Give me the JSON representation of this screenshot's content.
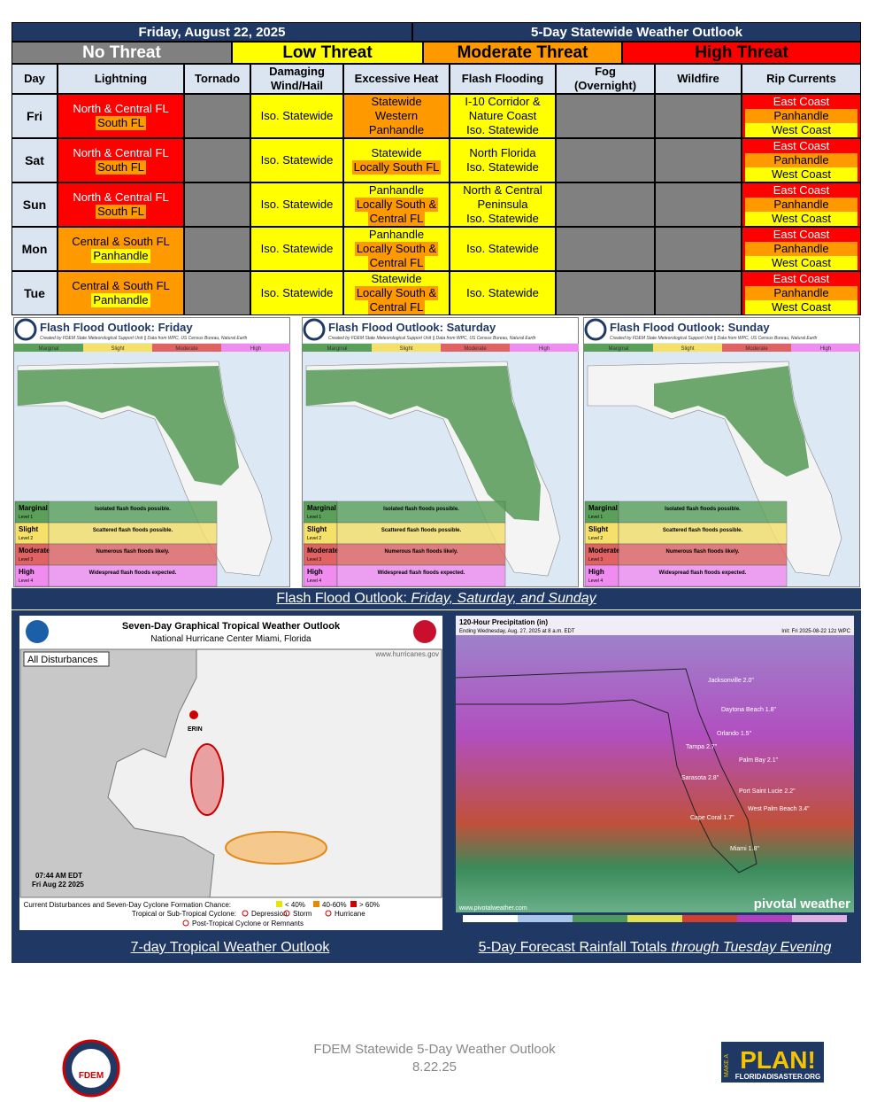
{
  "header": {
    "date": "Friday, August 22, 2025",
    "title": "5-Day Statewide Weather Outlook"
  },
  "threats": [
    {
      "label": "No Threat",
      "color": "#808080"
    },
    {
      "label": "Low Threat",
      "color": "#ffff00"
    },
    {
      "label": "Moderate Threat",
      "color": "#ff9900"
    },
    {
      "label": "High Threat",
      "color": "#ff0000"
    }
  ],
  "table": {
    "columns": [
      "Day",
      "Lightning",
      "Tornado",
      "Damaging Wind/Hail",
      "Excessive Heat",
      "Flash Flooding",
      "Fog (Overnight)",
      "Wildfire",
      "Rip Currents"
    ],
    "rows": [
      {
        "day": "Fri",
        "cells": [
          {
            "bg": "#ff0000",
            "lines": [
              {
                "text": "North & Central FL",
                "bg": "#ff0000"
              },
              {
                "text": "South FL",
                "bg": "#ff9900"
              }
            ]
          },
          {
            "bg": "#808080",
            "lines": []
          },
          {
            "bg": "#ffff00",
            "lines": [
              {
                "text": "Iso. Statewide",
                "bg": "#ffff00"
              }
            ]
          },
          {
            "bg": "#ff9900",
            "lines": [
              {
                "text": "Statewide",
                "bg": "#ff9900"
              },
              {
                "text": "Western",
                "bg": "#ff9900"
              },
              {
                "text": "Panhandle",
                "bg": "#ff9900"
              }
            ]
          },
          {
            "bg": "#ffff00",
            "lines": [
              {
                "text": "I-10 Corridor &",
                "bg": "#ffff00"
              },
              {
                "text": "Nature Coast",
                "bg": "#ffff00"
              },
              {
                "text": "Iso. Statewide",
                "bg": "#ffff00"
              }
            ]
          },
          {
            "bg": "#808080",
            "lines": []
          },
          {
            "bg": "#808080",
            "lines": []
          },
          {
            "bg": "#ff0000",
            "lines": [
              {
                "text": "East Coast",
                "bg": "#ff0000"
              },
              {
                "text": "Panhandle",
                "bg": "#ff9900"
              },
              {
                "text": "West Coast",
                "bg": "#ffff00"
              }
            ]
          }
        ]
      },
      {
        "day": "Sat",
        "cells": [
          {
            "bg": "#ff0000",
            "lines": [
              {
                "text": "North & Central FL",
                "bg": "#ff0000"
              },
              {
                "text": "South FL",
                "bg": "#ff9900"
              }
            ]
          },
          {
            "bg": "#808080",
            "lines": []
          },
          {
            "bg": "#ffff00",
            "lines": [
              {
                "text": "Iso. Statewide",
                "bg": "#ffff00"
              }
            ]
          },
          {
            "bg": "#ffff00",
            "lines": [
              {
                "text": "Statewide",
                "bg": "#ffff00"
              },
              {
                "text": "Locally South FL",
                "bg": "#ff9900"
              }
            ]
          },
          {
            "bg": "#ffff00",
            "lines": [
              {
                "text": "North Florida",
                "bg": "#ffff00"
              },
              {
                "text": "Iso. Statewide",
                "bg": "#ffff00"
              }
            ]
          },
          {
            "bg": "#808080",
            "lines": []
          },
          {
            "bg": "#808080",
            "lines": []
          },
          {
            "bg": "#ff0000",
            "lines": [
              {
                "text": "East Coast",
                "bg": "#ff0000"
              },
              {
                "text": "Panhandle",
                "bg": "#ff9900"
              },
              {
                "text": "West Coast",
                "bg": "#ffff00"
              }
            ]
          }
        ]
      },
      {
        "day": "Sun",
        "cells": [
          {
            "bg": "#ff0000",
            "lines": [
              {
                "text": "North & Central FL",
                "bg": "#ff0000"
              },
              {
                "text": "South FL",
                "bg": "#ff9900"
              }
            ]
          },
          {
            "bg": "#808080",
            "lines": []
          },
          {
            "bg": "#ffff00",
            "lines": [
              {
                "text": "Iso. Statewide",
                "bg": "#ffff00"
              }
            ]
          },
          {
            "bg": "#ffff00",
            "lines": [
              {
                "text": "Panhandle",
                "bg": "#ffff00"
              },
              {
                "text": "Locally South &",
                "bg": "#ff9900"
              },
              {
                "text": "Central FL",
                "bg": "#ff9900"
              }
            ]
          },
          {
            "bg": "#ffff00",
            "lines": [
              {
                "text": "North & Central",
                "bg": "#ffff00"
              },
              {
                "text": "Peninsula",
                "bg": "#ffff00"
              },
              {
                "text": "Iso. Statewide",
                "bg": "#ffff00"
              }
            ]
          },
          {
            "bg": "#808080",
            "lines": []
          },
          {
            "bg": "#808080",
            "lines": []
          },
          {
            "bg": "#ff0000",
            "lines": [
              {
                "text": "East Coast",
                "bg": "#ff0000"
              },
              {
                "text": "Panhandle",
                "bg": "#ff9900"
              },
              {
                "text": "West Coast",
                "bg": "#ffff00"
              }
            ]
          }
        ]
      },
      {
        "day": "Mon",
        "cells": [
          {
            "bg": "#ff9900",
            "lines": [
              {
                "text": "Central & South FL",
                "bg": "#ff9900"
              },
              {
                "text": "Panhandle",
                "bg": "#ffff00"
              }
            ]
          },
          {
            "bg": "#808080",
            "lines": []
          },
          {
            "bg": "#ffff00",
            "lines": [
              {
                "text": "Iso. Statewide",
                "bg": "#ffff00"
              }
            ]
          },
          {
            "bg": "#ffff00",
            "lines": [
              {
                "text": "Panhandle",
                "bg": "#ffff00"
              },
              {
                "text": "Locally South &",
                "bg": "#ff9900"
              },
              {
                "text": "Central FL",
                "bg": "#ff9900"
              }
            ]
          },
          {
            "bg": "#ffff00",
            "lines": [
              {
                "text": "Iso. Statewide",
                "bg": "#ffff00"
              }
            ]
          },
          {
            "bg": "#808080",
            "lines": []
          },
          {
            "bg": "#808080",
            "lines": []
          },
          {
            "bg": "#ff0000",
            "lines": [
              {
                "text": "East Coast",
                "bg": "#ff0000"
              },
              {
                "text": "Panhandle",
                "bg": "#ff9900"
              },
              {
                "text": "West Coast",
                "bg": "#ffff00"
              }
            ]
          }
        ]
      },
      {
        "day": "Tue",
        "cells": [
          {
            "bg": "#ff9900",
            "lines": [
              {
                "text": "Central & South FL",
                "bg": "#ff9900"
              },
              {
                "text": "Panhandle",
                "bg": "#ffff00"
              }
            ]
          },
          {
            "bg": "#808080",
            "lines": []
          },
          {
            "bg": "#ffff00",
            "lines": [
              {
                "text": "Iso. Statewide",
                "bg": "#ffff00"
              }
            ]
          },
          {
            "bg": "#ffff00",
            "lines": [
              {
                "text": "Statewide",
                "bg": "#ffff00"
              },
              {
                "text": "Locally South &",
                "bg": "#ff9900"
              },
              {
                "text": "Central FL",
                "bg": "#ff9900"
              }
            ]
          },
          {
            "bg": "#ffff00",
            "lines": [
              {
                "text": "Iso. Statewide",
                "bg": "#ffff00"
              }
            ]
          },
          {
            "bg": "#808080",
            "lines": []
          },
          {
            "bg": "#808080",
            "lines": []
          },
          {
            "bg": "#ff0000",
            "lines": [
              {
                "text": "East Coast",
                "bg": "#ff0000"
              },
              {
                "text": "Panhandle",
                "bg": "#ff9900"
              },
              {
                "text": "West Coast",
                "bg": "#ffff00"
              }
            ]
          }
        ]
      }
    ]
  },
  "flood_maps": {
    "panels": [
      "Flash Flood Outlook: Friday",
      "Flash Flood Outlook: Saturday",
      "Flash Flood Outlook: Sunday"
    ],
    "credit": "Created by FDEM State Meteorological Support Unit || Data from WPC, US Census Bureau, Natural Earth",
    "levels": [
      {
        "name": "Marginal",
        "level": "Level 1",
        "desc": "Isolated flash floods possible.",
        "color": "#5aa05a"
      },
      {
        "name": "Slight",
        "level": "Level 2",
        "desc": "Scattered flash floods possible.",
        "color": "#f5e06a"
      },
      {
        "name": "Moderate",
        "level": "Level 3",
        "desc": "Numerous flash floods likely.",
        "color": "#e06262"
      },
      {
        "name": "High",
        "level": "Level 4",
        "desc": "Widespread flash floods expected.",
        "color": "#f08cf0"
      }
    ],
    "caption_main": "Flash Flood Outlook: ",
    "caption_italic": "Friday, Saturday, and Sunday"
  },
  "tropical": {
    "title": "Seven-Day Graphical Tropical Weather Outlook",
    "subtitle": "National Hurricane Center  Miami, Florida",
    "tab": "All Disturbances",
    "url": "www.hurricanes.gov",
    "storm": "ERIN",
    "time": "07:44 AM EDT",
    "date": "Fri Aug 22 2025",
    "legend": "Current Disturbances and Seven-Day Cyclone Formation Chance:",
    "chances": [
      "< 40%",
      "40-60%",
      "> 60%"
    ],
    "legend2": "Tropical or Sub-Tropical Cyclone:",
    "types": [
      "Depression",
      "Storm",
      "Hurricane"
    ],
    "legend3": "Post-Tropical Cyclone or Remnants",
    "caption": "7-day Tropical Weather Outlook"
  },
  "rainfall": {
    "title": "120-Hour Precipitation (in)",
    "ending": "Ending Wednesday, Aug. 27, 2025 at 8 a.m. EDT",
    "init": "Init: Fri 2025-08-22 12z WPC",
    "brand": "pivotal weather",
    "url": "www.pivotalweather.com",
    "cities": [
      "Jacksonville 2.0\"",
      "Daytona Beach 1.8\"",
      "Orlando 1.5\"",
      "Tampa 2.7\"",
      "Palm Bay 2.1\"",
      "Sarasota 2.8\"",
      "Port Saint Lucie 2.2\"",
      "West Palm Beach 3.4\"",
      "Cape Coral 1.7\"",
      "Miami 1.8\""
    ],
    "caption_main": "5-Day Forecast Rainfall Totals ",
    "caption_italic": "through Tuesday Evening"
  },
  "footer": {
    "title": "FDEM Statewide 5-Day Weather Outlook",
    "date": "8.22.25",
    "logo": "FDEM",
    "plan_top": "MAKE A",
    "plan": "PLAN!",
    "plan_url": "FLORIDADISASTER.ORG"
  }
}
